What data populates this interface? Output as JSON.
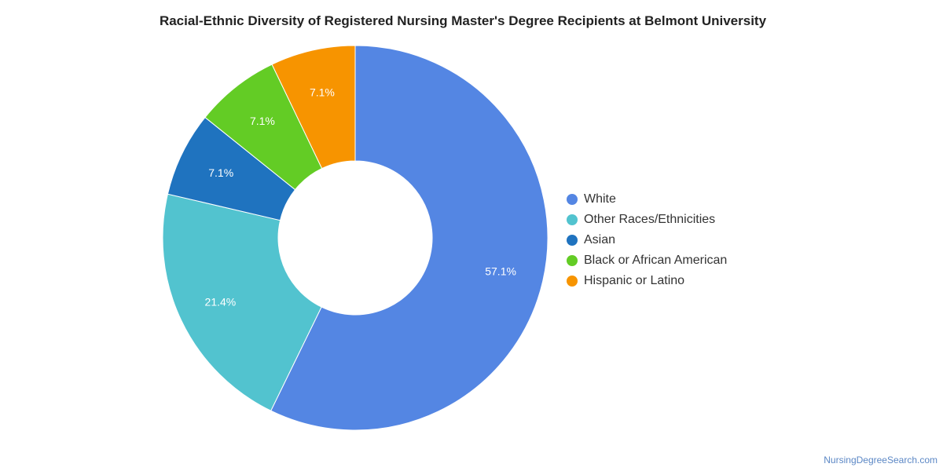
{
  "chart_data": {
    "type": "pie",
    "donut": true,
    "title": "Racial-Ethnic Diversity of Registered Nursing Master's Degree Recipients at Belmont University",
    "legend_position": "right",
    "categories": [
      "White",
      "Other Races/Ethnicities",
      "Asian",
      "Black or African American",
      "Hispanic or Latino"
    ],
    "values": [
      57.1,
      21.4,
      7.1,
      7.1,
      7.1
    ],
    "labels": [
      "57.1%",
      "21.4%",
      "7.1%",
      "7.1%",
      "7.1%"
    ],
    "colors": [
      "#5486e3",
      "#52c3cf",
      "#1f73bf",
      "#63cc25",
      "#f79400"
    ]
  },
  "footer": {
    "source": "NursingDegreeSearch.com"
  }
}
